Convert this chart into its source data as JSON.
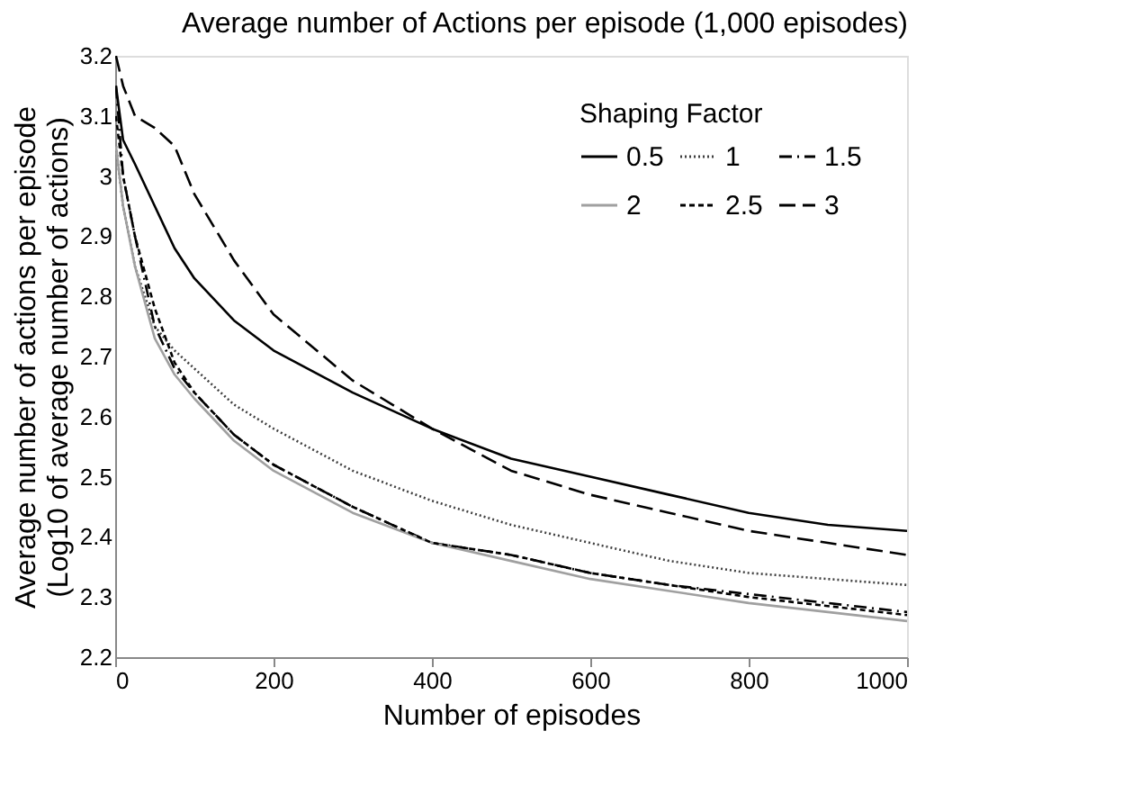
{
  "chart_data": {
    "type": "line",
    "title": "Average number of Actions per episode (1,000 episodes)",
    "xlabel": "Number of episodes",
    "ylabel": "Average number of actions per episode\n(Log10 of average number of actions)",
    "legend_title": "Shaping Factor",
    "legend": "top right",
    "grid": false,
    "marker": "none",
    "x": [
      1,
      10,
      25,
      50,
      75,
      100,
      150,
      200,
      300,
      400,
      500,
      600,
      700,
      800,
      900,
      1000
    ],
    "xlim": [
      0,
      1000
    ],
    "xticks": [
      0,
      200,
      400,
      600,
      800,
      1000
    ],
    "ylim": [
      2.2,
      3.2
    ],
    "yticks": [
      2.2,
      2.3,
      2.4,
      2.5,
      2.6,
      2.7,
      2.8,
      2.9,
      3,
      3.1,
      3.2
    ],
    "series": [
      {
        "name": "0.5",
        "color": "#000000",
        "line_style": "solid",
        "values": [
          3.15,
          3.06,
          3.02,
          2.95,
          2.88,
          2.83,
          2.76,
          2.71,
          2.64,
          2.58,
          2.53,
          2.5,
          2.47,
          2.44,
          2.42,
          2.41
        ]
      },
      {
        "name": "1",
        "color": "#404040",
        "line_style": "dotted",
        "values": [
          3.05,
          2.95,
          2.85,
          2.75,
          2.71,
          2.68,
          2.62,
          2.58,
          2.51,
          2.46,
          2.42,
          2.39,
          2.36,
          2.34,
          2.33,
          2.32
        ]
      },
      {
        "name": "1.5",
        "color": "#000000",
        "line_style": "dashdot",
        "values": [
          3.15,
          3.0,
          2.9,
          2.75,
          2.68,
          2.64,
          2.57,
          2.52,
          2.45,
          2.39,
          2.37,
          2.34,
          2.32,
          2.305,
          2.29,
          2.275
        ]
      },
      {
        "name": "2",
        "color": "#a0a0a0",
        "line_style": "solid",
        "values": [
          3.05,
          2.95,
          2.85,
          2.73,
          2.67,
          2.63,
          2.56,
          2.51,
          2.44,
          2.39,
          2.36,
          2.33,
          2.31,
          2.29,
          2.275,
          2.26
        ]
      },
      {
        "name": "2.5",
        "color": "#000000",
        "line_style": "dashed",
        "values": [
          3.1,
          3.0,
          2.9,
          2.78,
          2.69,
          2.64,
          2.57,
          2.52,
          2.45,
          2.39,
          2.37,
          2.34,
          2.32,
          2.3,
          2.285,
          2.27
        ]
      },
      {
        "name": "3",
        "color": "#000000",
        "line_style": "longdash",
        "values": [
          3.2,
          3.15,
          3.1,
          3.08,
          3.05,
          2.97,
          2.86,
          2.77,
          2.66,
          2.58,
          2.51,
          2.47,
          2.44,
          2.41,
          2.39,
          2.37
        ]
      }
    ]
  }
}
